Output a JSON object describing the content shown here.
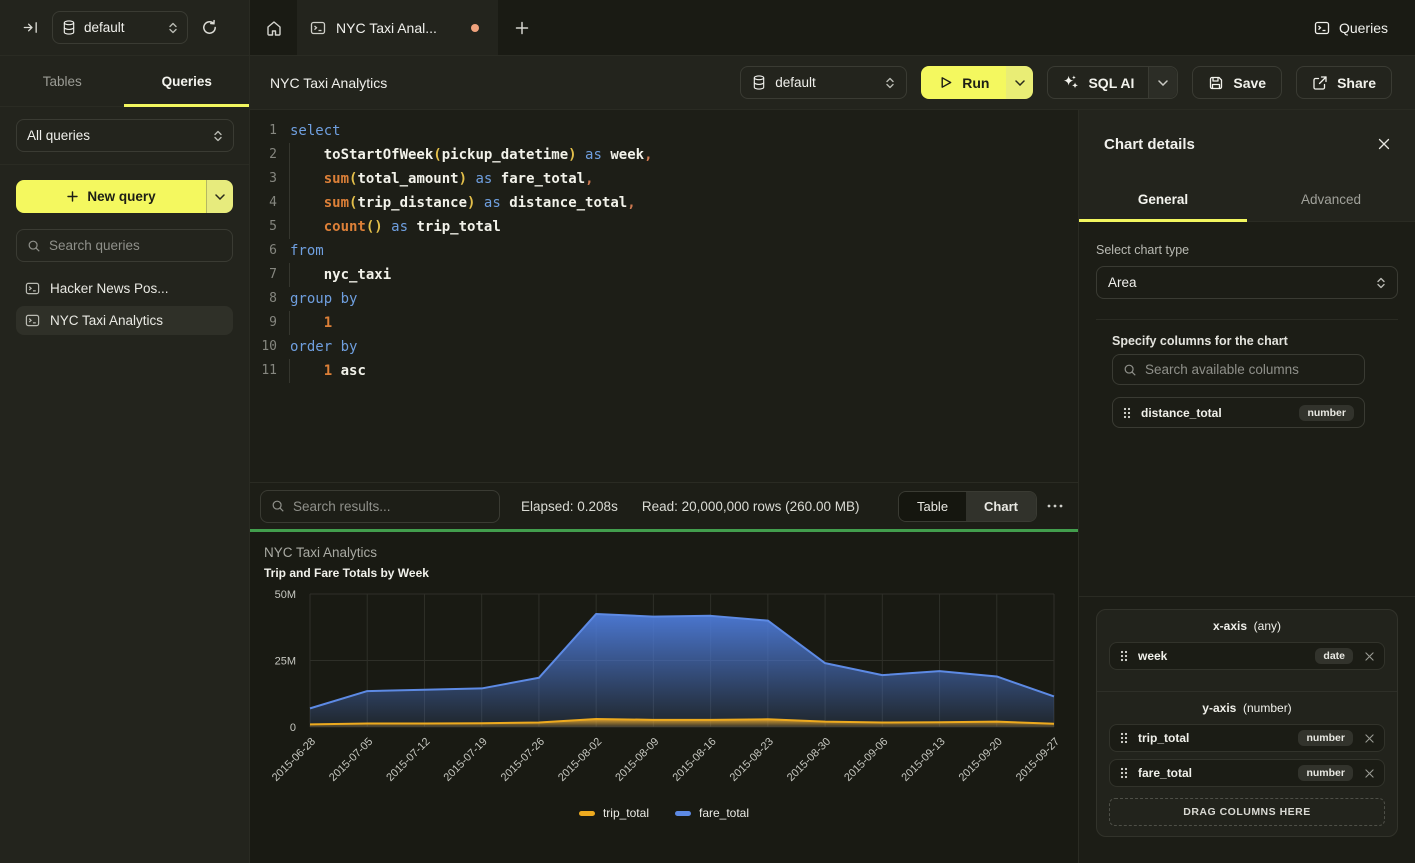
{
  "topbar": {
    "database": "default",
    "tab_label": "NYC Taxi Anal...",
    "queries_button": "Queries"
  },
  "sidebar": {
    "tables_tab": "Tables",
    "queries_tab": "Queries",
    "filter_value": "All queries",
    "new_query_label": "New query",
    "search_placeholder": "Search queries",
    "items": [
      {
        "label": "Hacker News Pos...",
        "selected": false
      },
      {
        "label": "NYC Taxi Analytics",
        "selected": true
      }
    ]
  },
  "header": {
    "title": "NYC Taxi Analytics",
    "database": "default",
    "run_label": "Run",
    "sql_ai_label": "SQL AI",
    "save_label": "Save",
    "share_label": "Share"
  },
  "editor": {
    "lines": [
      [
        [
          "kw",
          "select"
        ]
      ],
      [
        [
          "pl",
          "    "
        ],
        [
          "id",
          "toStartOfWeek"
        ],
        [
          "pr",
          "("
        ],
        [
          "id",
          "pickup_datetime"
        ],
        [
          "pr",
          ")"
        ],
        [
          "pl",
          " "
        ],
        [
          "kw",
          "as"
        ],
        [
          "pl",
          " "
        ],
        [
          "id",
          "week"
        ],
        [
          "pu",
          ","
        ]
      ],
      [
        [
          "pl",
          "    "
        ],
        [
          "fn",
          "sum"
        ],
        [
          "pr",
          "("
        ],
        [
          "id",
          "total_amount"
        ],
        [
          "pr",
          ")"
        ],
        [
          "pl",
          " "
        ],
        [
          "kw",
          "as"
        ],
        [
          "pl",
          " "
        ],
        [
          "id",
          "fare_total"
        ],
        [
          "pu",
          ","
        ]
      ],
      [
        [
          "pl",
          "    "
        ],
        [
          "fn",
          "sum"
        ],
        [
          "pr",
          "("
        ],
        [
          "id",
          "trip_distance"
        ],
        [
          "pr",
          ")"
        ],
        [
          "pl",
          " "
        ],
        [
          "kw",
          "as"
        ],
        [
          "pl",
          " "
        ],
        [
          "id",
          "distance_total"
        ],
        [
          "pu",
          ","
        ]
      ],
      [
        [
          "pl",
          "    "
        ],
        [
          "fn",
          "count"
        ],
        [
          "pr",
          "()"
        ],
        [
          "pl",
          " "
        ],
        [
          "kw",
          "as"
        ],
        [
          "pl",
          " "
        ],
        [
          "id",
          "trip_total"
        ]
      ],
      [
        [
          "kw",
          "from"
        ]
      ],
      [
        [
          "pl",
          "    "
        ],
        [
          "id",
          "nyc_taxi"
        ]
      ],
      [
        [
          "kw",
          "group by"
        ]
      ],
      [
        [
          "pl",
          "    "
        ],
        [
          "nu",
          "1"
        ]
      ],
      [
        [
          "kw",
          "order by"
        ]
      ],
      [
        [
          "pl",
          "    "
        ],
        [
          "nu",
          "1"
        ],
        [
          "pl",
          " "
        ],
        [
          "id",
          "asc"
        ]
      ]
    ]
  },
  "results": {
    "search_placeholder": "Search results...",
    "elapsed": "Elapsed: 0.208s",
    "read": "Read: 20,000,000 rows (260.00 MB)",
    "view_table": "Table",
    "view_chart": "Chart"
  },
  "chart_data": {
    "type": "area",
    "title": "NYC Taxi Analytics",
    "subtitle": "Trip and Fare Totals by Week",
    "x": [
      "2015-06-28",
      "2015-07-05",
      "2015-07-12",
      "2015-07-19",
      "2015-07-26",
      "2015-08-02",
      "2015-08-09",
      "2015-08-16",
      "2015-08-23",
      "2015-08-30",
      "2015-09-06",
      "2015-09-13",
      "2015-09-20",
      "2015-09-27"
    ],
    "series": [
      {
        "name": "trip_total",
        "color": "#e2a32c",
        "line": "#edaa1f",
        "values": [
          1000000,
          1300000,
          1300000,
          1400000,
          1700000,
          3000000,
          2700000,
          2700000,
          2900000,
          2000000,
          1700000,
          1800000,
          2000000,
          1200000
        ]
      },
      {
        "name": "fare_total",
        "color": "#4d7bd9",
        "line": "#5d8ae4",
        "values": [
          7000000,
          13500000,
          14000000,
          14500000,
          18500000,
          42500000,
          41500000,
          41800000,
          40000000,
          24000000,
          19500000,
          21000000,
          19000000,
          11500000
        ]
      }
    ],
    "ylim": [
      0,
      50000000
    ],
    "yticks": [
      [
        0,
        "0"
      ],
      [
        25000000,
        "25M"
      ],
      [
        50000000,
        "50M"
      ]
    ],
    "grid": true,
    "legend_position": "bottom"
  },
  "chart_panel": {
    "title": "Chart details",
    "tab_general": "General",
    "tab_advanced": "Advanced",
    "chart_type_label": "Select chart type",
    "chart_type_value": "Area",
    "columns_label": "Specify columns for the chart",
    "columns_search_placeholder": "Search available columns",
    "available_columns": [
      {
        "name": "distance_total",
        "type": "number"
      }
    ],
    "x_axis": {
      "label": "x-axis",
      "hint": "(any)",
      "items": [
        {
          "name": "week",
          "type": "date"
        }
      ]
    },
    "y_axis": {
      "label": "y-axis",
      "hint": "(number)",
      "items": [
        {
          "name": "trip_total",
          "type": "number"
        },
        {
          "name": "fare_total",
          "type": "number"
        }
      ]
    },
    "drop_hint": "DRAG COLUMNS HERE"
  }
}
